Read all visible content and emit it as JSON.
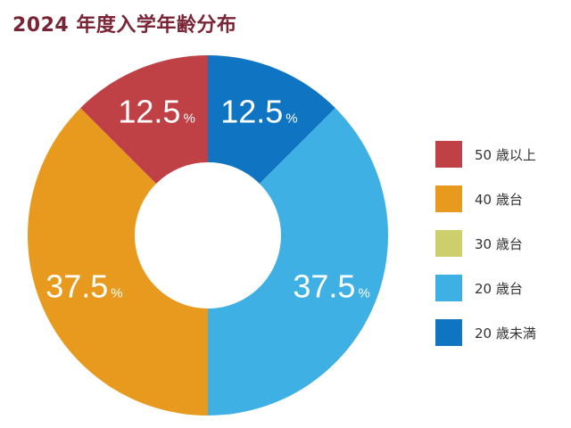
{
  "chart_data": {
    "type": "pie",
    "title": "2024 年度入学年齢分布",
    "categories": [
      "20 歳未満",
      "20 歳台",
      "30 歳台",
      "40 歳台",
      "50 歳以上"
    ],
    "values": [
      12.5,
      37.5,
      0,
      37.5,
      12.5
    ],
    "value_suffix": "%",
    "data_labels": [
      "12.5",
      "37.5",
      "",
      "37.5",
      "12.5"
    ],
    "colors": [
      "#0f74c2",
      "#3eb0e4",
      "#cccf6b",
      "#e89a1e",
      "#c04145"
    ],
    "legend": {
      "placement": "right",
      "order": [
        "50 歳以上",
        "40 歳台",
        "30 歳台",
        "20 歳台",
        "20 歳未満"
      ],
      "colors": [
        "#c04145",
        "#e89a1e",
        "#cccf6b",
        "#3eb0e4",
        "#0f74c2"
      ]
    },
    "donut": true
  }
}
